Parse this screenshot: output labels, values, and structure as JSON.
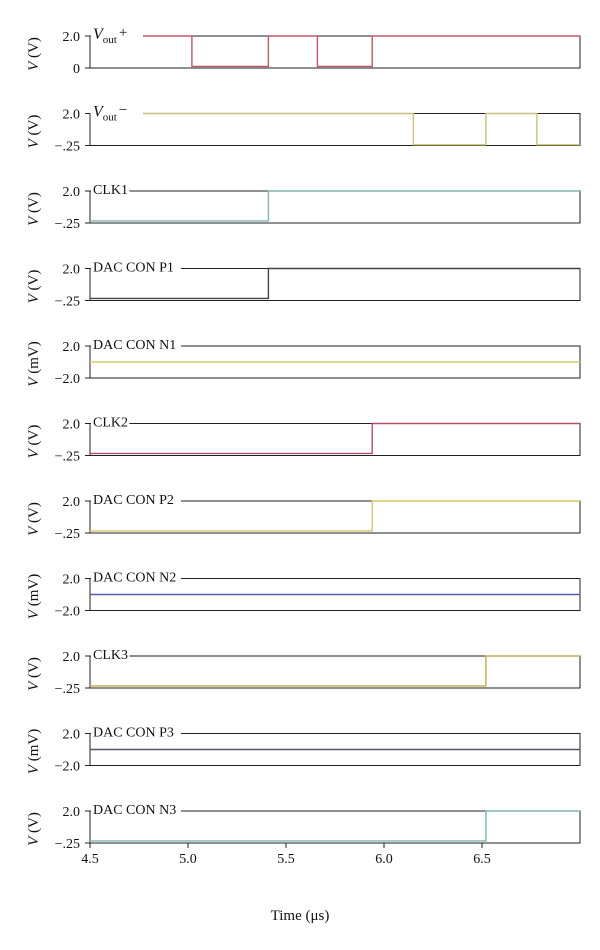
{
  "chart_data": {
    "type": "line",
    "xlabel": "Time (μs)",
    "xlim": [
      4.5,
      7.0
    ],
    "xticks": [
      4.5,
      5.0,
      5.5,
      6.0,
      6.5
    ],
    "xtick_labels": [
      "4.5",
      "5.0",
      "5.5",
      "6.0",
      "6.5"
    ],
    "panels": [
      {
        "name": "V_out+",
        "label_main": "V",
        "label_sub": "out",
        "label_sup": "+",
        "ylabel": "V (V)",
        "ylabel_unit": "(V)",
        "ylim": [
          0,
          2.0
        ],
        "yticks": [
          "2.0",
          "0"
        ],
        "color": "#c0586a",
        "x": [
          4.5,
          5.02,
          5.02,
          5.41,
          5.41,
          5.66,
          5.66,
          5.94,
          5.94,
          7.0
        ],
        "y": [
          2.0,
          2.0,
          0.1,
          0.1,
          2.0,
          2.0,
          0.1,
          0.1,
          2.0,
          2.0
        ]
      },
      {
        "name": "V_out−",
        "label_main": "V",
        "label_sub": "out",
        "label_sup": "−",
        "ylabel": "V (V)",
        "ylabel_unit": "(V)",
        "ylim": [
          -0.25,
          2.0
        ],
        "yticks": [
          "2.0",
          "−.25"
        ],
        "color": "#c8c27a",
        "x": [
          4.5,
          6.15,
          6.15,
          6.52,
          6.52,
          6.78,
          6.78,
          7.0
        ],
        "y": [
          2.0,
          2.0,
          -0.2,
          -0.2,
          2.0,
          2.0,
          -0.2,
          -0.2
        ]
      },
      {
        "name": "CLK1",
        "label_main": "CLK1",
        "ylabel": "V (V)",
        "ylabel_unit": "(V)",
        "ylim": [
          -0.25,
          2.0
        ],
        "yticks": [
          "2.0",
          "−.25"
        ],
        "color": "#7fb8b0",
        "x": [
          4.5,
          5.41,
          5.41,
          7.0
        ],
        "y": [
          -0.1,
          -0.1,
          2.0,
          2.0
        ]
      },
      {
        "name": "DAC CON P1",
        "label_main": "DAC CON P1",
        "ylabel": "V (V)",
        "ylabel_unit": "(V)",
        "ylim": [
          -0.25,
          2.0
        ],
        "yticks": [
          "2.0",
          "−.25"
        ],
        "color": "#444444",
        "x": [
          4.5,
          5.41,
          5.41,
          7.0
        ],
        "y": [
          -0.1,
          -0.1,
          2.0,
          2.0
        ]
      },
      {
        "name": "DAC CON N1",
        "label_main": "DAC CON N1",
        "ylabel": "V (mV)",
        "ylabel_unit": "(mV)",
        "ylim": [
          -2.0,
          2.0
        ],
        "yticks": [
          "2.0",
          "−2.0"
        ],
        "color": "#d8cc6a",
        "x": [
          4.5,
          7.0
        ],
        "y": [
          0,
          0
        ]
      },
      {
        "name": "CLK2",
        "label_main": "CLK2",
        "ylabel": "V (V)",
        "ylabel_unit": "(V)",
        "ylim": [
          -0.25,
          2.0
        ],
        "yticks": [
          "2.0",
          "−.25"
        ],
        "color": "#b05068",
        "x": [
          4.5,
          5.94,
          5.94,
          7.0
        ],
        "y": [
          -0.1,
          -0.1,
          2.0,
          2.0
        ]
      },
      {
        "name": "DAC CON P2",
        "label_main": "DAC CON P2",
        "ylabel": "V (V)",
        "ylabel_unit": "(V)",
        "ylim": [
          -0.25,
          2.0
        ],
        "yticks": [
          "2.0",
          "−.25"
        ],
        "color": "#d0c66a",
        "x": [
          4.5,
          5.94,
          5.94,
          7.0
        ],
        "y": [
          -0.1,
          -0.1,
          2.0,
          2.0
        ]
      },
      {
        "name": "DAC CON N2",
        "label_main": "DAC CON N2",
        "ylabel": "V (mV)",
        "ylabel_unit": "(mV)",
        "ylim": [
          -2.0,
          2.0
        ],
        "yticks": [
          "2.0",
          "−2.0"
        ],
        "color": "#5a5aa8",
        "x": [
          4.5,
          7.0
        ],
        "y": [
          0,
          0
        ]
      },
      {
        "name": "CLK3",
        "label_main": "CLK3",
        "ylabel": "V (V)",
        "ylabel_unit": "(V)",
        "ylim": [
          -0.25,
          2.0
        ],
        "yticks": [
          "2.0",
          "−.25"
        ],
        "color": "#c2ae4a",
        "x": [
          4.5,
          6.52,
          6.52,
          7.0
        ],
        "y": [
          -0.1,
          -0.1,
          2.0,
          2.0
        ]
      },
      {
        "name": "DAC CON P3",
        "label_main": "DAC CON P3",
        "ylabel": "V (mV)",
        "ylabel_unit": "(mV)",
        "ylim": [
          -2.0,
          2.0
        ],
        "yticks": [
          "2.0",
          "−2.0"
        ],
        "color": "#555566",
        "x": [
          4.5,
          7.0
        ],
        "y": [
          0,
          0
        ]
      },
      {
        "name": "DAC CON N3",
        "label_main": "DAC CON N3",
        "ylabel": "V (V)",
        "ylabel_unit": "(V)",
        "ylim": [
          -0.25,
          2.0
        ],
        "yticks": [
          "2.0",
          "−.25"
        ],
        "color": "#7fb8b0",
        "x": [
          4.5,
          6.52,
          6.52,
          7.0
        ],
        "y": [
          -0.1,
          -0.1,
          2.0,
          2.0
        ]
      }
    ]
  }
}
